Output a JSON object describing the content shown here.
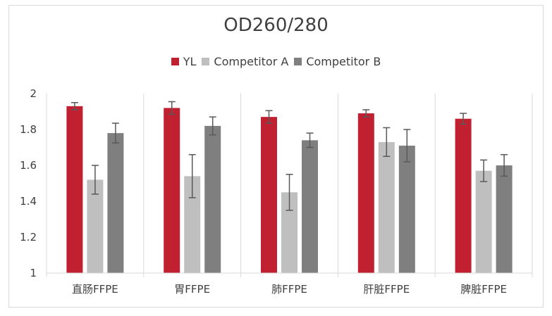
{
  "chart_data": {
    "type": "bar",
    "title": "OD260/280",
    "categories": [
      "直肠FFPE",
      "胃FFPE",
      "肺FFPE",
      "肝脏FFPE",
      "脾脏FFPE"
    ],
    "series": [
      {
        "name": "YL",
        "color": "#c0202f",
        "values": [
          1.93,
          1.92,
          1.87,
          1.89,
          1.86
        ],
        "errors": [
          0.02,
          0.035,
          0.035,
          0.02,
          0.03
        ]
      },
      {
        "name": "Competitor A",
        "color": "#bfbfbf",
        "values": [
          1.52,
          1.54,
          1.45,
          1.73,
          1.57
        ],
        "errors": [
          0.08,
          0.12,
          0.1,
          0.08,
          0.06
        ]
      },
      {
        "name": "Competitor B",
        "color": "#7f7f7f",
        "values": [
          1.78,
          1.82,
          1.74,
          1.71,
          1.6
        ],
        "errors": [
          0.055,
          0.05,
          0.04,
          0.09,
          0.06
        ]
      }
    ],
    "ylim": [
      1,
      2
    ],
    "yticks": [
      "1",
      "1.2",
      "1.4",
      "1.6",
      "1.8",
      "2"
    ],
    "xlabel": "",
    "ylabel": "",
    "legend_position": "top-center",
    "grid": false
  }
}
